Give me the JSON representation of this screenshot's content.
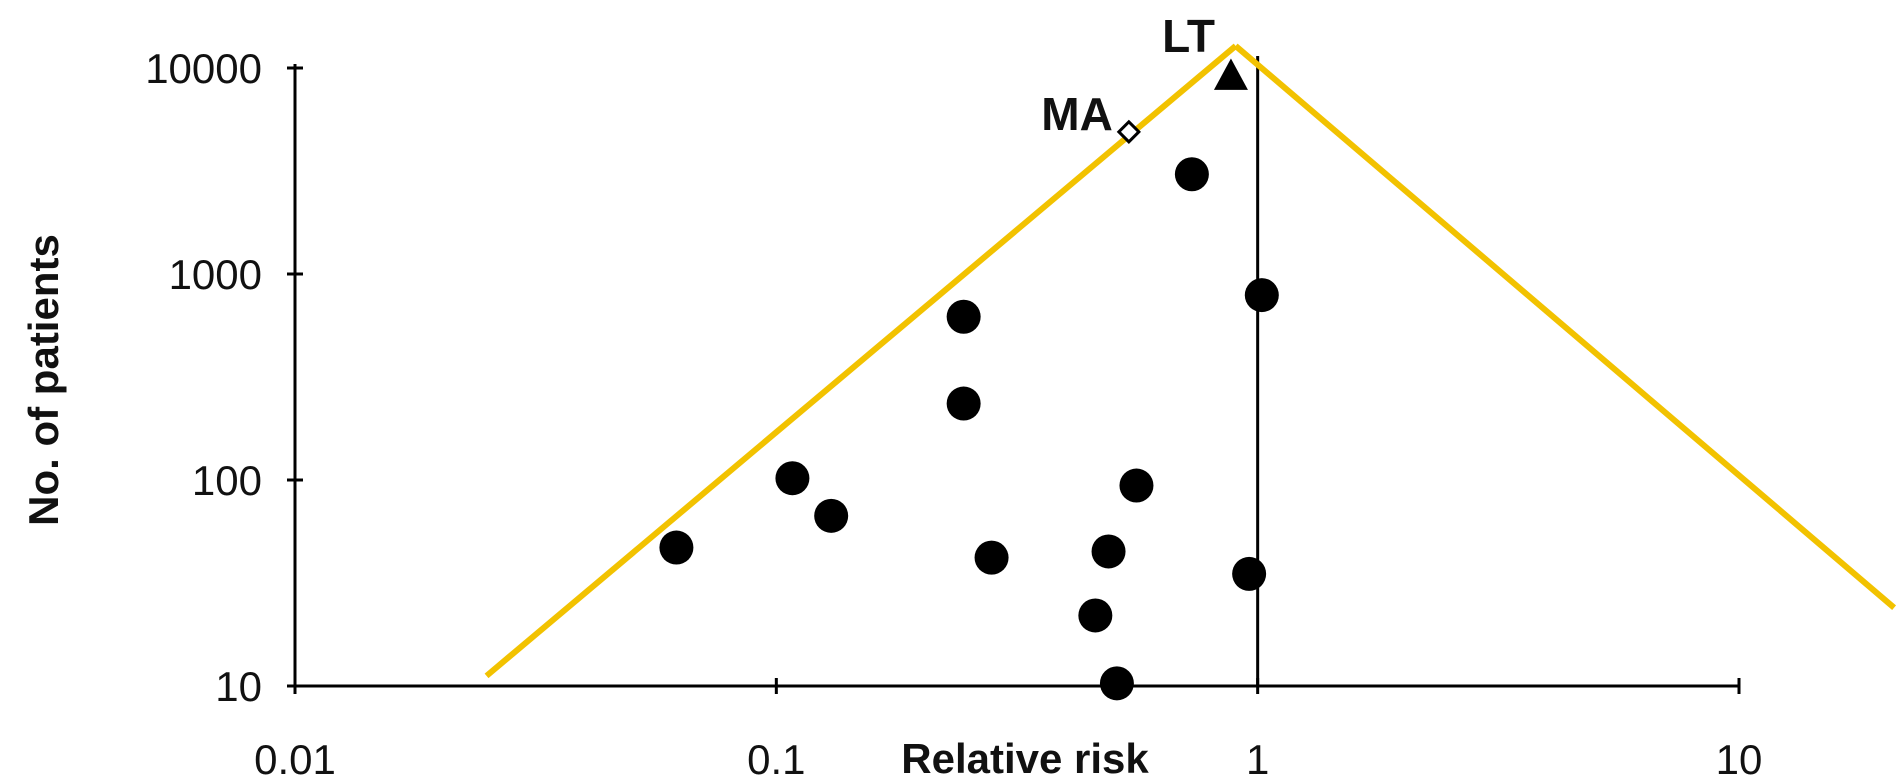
{
  "chart_data": {
    "type": "scatter",
    "title": "",
    "xlabel": "Relative risk",
    "ylabel": "No. of patients",
    "x_scale": "log",
    "y_scale": "log",
    "xlim": [
      0.01,
      10
    ],
    "ylim": [
      10,
      10000
    ],
    "x_ticks": [
      0.01,
      0.1,
      1,
      10
    ],
    "x_tick_labels": [
      "0.01",
      "0.1",
      "1",
      "10"
    ],
    "y_ticks": [
      10,
      100,
      1000,
      10000
    ],
    "y_tick_labels": [
      "10",
      "100",
      "1000",
      "10000"
    ],
    "grid": false,
    "legend": "none",
    "reference_line_x": 1,
    "colors": {
      "points": "#000000",
      "funnel": "#f2c200",
      "axis": "#000000"
    },
    "points": [
      {
        "x": 0.062,
        "y": 47
      },
      {
        "x": 0.108,
        "y": 102
      },
      {
        "x": 0.13,
        "y": 67
      },
      {
        "x": 0.245,
        "y": 620
      },
      {
        "x": 0.245,
        "y": 235
      },
      {
        "x": 0.28,
        "y": 42
      },
      {
        "x": 0.46,
        "y": 22
      },
      {
        "x": 0.49,
        "y": 45
      },
      {
        "x": 0.51,
        "y": 10.3
      },
      {
        "x": 0.56,
        "y": 94
      },
      {
        "x": 0.73,
        "y": 3050
      },
      {
        "x": 0.96,
        "y": 35
      },
      {
        "x": 1.02,
        "y": 790
      }
    ],
    "annotations": [
      {
        "label": "MA",
        "marker": "diamond",
        "x": 0.54,
        "y": 4900
      },
      {
        "label": "LT",
        "marker": "triangle",
        "x": 0.88,
        "y": 9200
      }
    ],
    "funnel_lines": [
      {
        "x": [
          0.025,
          0.9
        ],
        "y": [
          11.2,
          12800
        ]
      },
      {
        "x": [
          0.9,
          21
        ],
        "y": [
          12800,
          24
        ]
      }
    ]
  }
}
